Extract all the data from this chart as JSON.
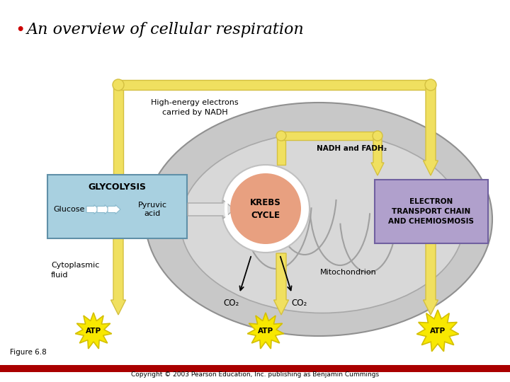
{
  "title": "An overview of cellular respiration",
  "title_bullet": "•",
  "title_fontsize": 18,
  "bg_color": "#ffffff",
  "glycolysis_box_color": "#a8d0e0",
  "electron_box_color": "#b0a0cc",
  "krebs_circle_color": "#e8a080",
  "yellow": "#f0e060",
  "yellow_edge": "#d4c040",
  "atp_color": "#f8e800",
  "atp_edge": "#d4c000",
  "gray_mito": "#cccccc",
  "gray_mito2": "#d8d8d8",
  "gray_inner": "#e0e0e0",
  "co2_label": "CO₂",
  "glycolysis_label": "GLYCOLYSIS",
  "glucose_label": "Glucose",
  "pyruvic_label": "Pyruvic\nacid",
  "krebs_label": "KREBS\nCYCLE",
  "electron_label": "ELECTRON\nTRANSPORT CHAIN\nAND CHEMIOSMOSIS",
  "nadh_label": "High-energy electrons\ncarried by NADH",
  "nadh_fadh2_label": "NADH and FADH₂",
  "cytoplasmic_label": "Cytoplasmic\nfluid",
  "mitochondrion_label": "Mitochondrion",
  "atp_label": "ATP",
  "figure_label": "Figure 6.8",
  "copyright": "Copyright © 2003 Pearson Education, Inc. publishing as Benjamin Cummings"
}
